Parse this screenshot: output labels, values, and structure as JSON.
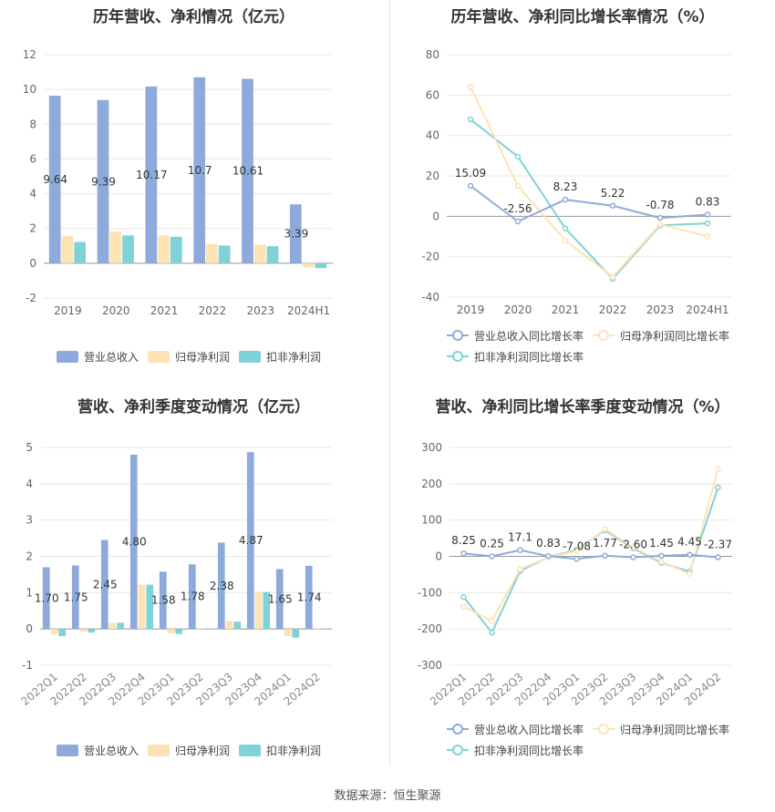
{
  "footer": "数据来源：恒生聚源",
  "chart_data": [
    {
      "type": "bar",
      "title": "历年营收、净利情况（亿元）",
      "categories": [
        "2019",
        "2020",
        "2021",
        "2022",
        "2023",
        "2024H1"
      ],
      "ylim": [
        -2,
        12
      ],
      "yticks": [
        -2,
        0,
        2,
        4,
        6,
        8,
        10,
        12
      ],
      "grid": true,
      "legend_position": "bottom",
      "series": [
        {
          "name": "营业总收入",
          "color": "#8eaadb",
          "values": [
            9.64,
            9.39,
            10.17,
            10.7,
            10.61,
            3.39
          ],
          "labels": true
        },
        {
          "name": "归母净利润",
          "color": "#fde3b4",
          "values": [
            1.58,
            1.82,
            1.6,
            1.1,
            1.08,
            -0.22
          ],
          "labels": false
        },
        {
          "name": "扣非净利润",
          "color": "#7fd3d6",
          "values": [
            1.22,
            1.6,
            1.52,
            1.02,
            0.98,
            -0.28
          ],
          "labels": false
        }
      ]
    },
    {
      "type": "line",
      "title": "历年营收、净利同比增长率情况（%）",
      "categories": [
        "2019",
        "2020",
        "2021",
        "2022",
        "2023",
        "2024H1"
      ],
      "ylim": [
        -40,
        80
      ],
      "yticks": [
        -40,
        -20,
        0,
        20,
        40,
        60,
        80
      ],
      "grid": true,
      "legend_position": "bottom",
      "series": [
        {
          "name": "营业总收入同比增长率",
          "color": "#8eaadb",
          "values": [
            15.09,
            -2.56,
            8.23,
            5.22,
            -0.78,
            0.83
          ],
          "labels": true
        },
        {
          "name": "归母净利润同比增长率",
          "color": "#fde3b4",
          "values": [
            64.0,
            15.0,
            -12.0,
            -30.0,
            -4.0,
            -10.0
          ],
          "labels": false
        },
        {
          "name": "扣非净利润同比增长率",
          "color": "#7fd3d6",
          "values": [
            48.0,
            29.5,
            -6.0,
            -31.0,
            -4.5,
            -3.5
          ],
          "labels": false
        }
      ]
    },
    {
      "type": "bar",
      "title": "营收、净利季度变动情况（亿元）",
      "categories": [
        "2022Q1",
        "2022Q2",
        "2022Q3",
        "2022Q4",
        "2023Q1",
        "2023Q2",
        "2023Q3",
        "2023Q4",
        "2024Q1",
        "2024Q2"
      ],
      "ylim": [
        -1,
        5
      ],
      "yticks": [
        -1,
        0,
        1,
        2,
        3,
        4,
        5
      ],
      "grid": true,
      "legend_position": "bottom",
      "series": [
        {
          "name": "营业总收入",
          "color": "#8eaadb",
          "values": [
            1.7,
            1.75,
            2.45,
            4.8,
            1.58,
            1.78,
            2.38,
            4.87,
            1.65,
            1.74
          ],
          "labels": true
        },
        {
          "name": "归母净利润",
          "color": "#fde3b4",
          "values": [
            -0.15,
            -0.08,
            0.17,
            1.22,
            -0.12,
            0.02,
            0.22,
            1.02,
            -0.2,
            0.02
          ],
          "labels": false
        },
        {
          "name": "扣非净利润",
          "color": "#7fd3d6",
          "values": [
            -0.2,
            -0.1,
            0.17,
            1.22,
            -0.14,
            0.01,
            0.2,
            1.02,
            -0.24,
            0.02
          ],
          "labels": false
        }
      ]
    },
    {
      "type": "line",
      "title": "营收、净利同比增长率季度变动情况（%）",
      "categories": [
        "2022Q1",
        "2022Q2",
        "2022Q3",
        "2022Q4",
        "2023Q1",
        "2023Q2",
        "2023Q3",
        "2023Q4",
        "2024Q1",
        "2024Q2"
      ],
      "ylim": [
        -300,
        300
      ],
      "yticks": [
        -300,
        -200,
        -100,
        0,
        100,
        200,
        300
      ],
      "grid": true,
      "legend_position": "bottom",
      "series": [
        {
          "name": "营业总收入同比增长率",
          "color": "#8eaadb",
          "values": [
            8.25,
            0.25,
            17.1,
            0.83,
            -7.08,
            1.77,
            -2.6,
            1.45,
            4.45,
            -2.37
          ],
          "labels": true
        },
        {
          "name": "归母净利润同比增长率",
          "color": "#fde3b4",
          "values": [
            -138,
            -178,
            -35,
            -3,
            15,
            75,
            25,
            -15,
            -48,
            240
          ],
          "labels": false
        },
        {
          "name": "扣非净利润同比增长率",
          "color": "#7fd3d6",
          "values": [
            -112,
            -210,
            -40,
            -2,
            18,
            72,
            22,
            -18,
            -42,
            190
          ],
          "labels": false
        }
      ]
    }
  ]
}
